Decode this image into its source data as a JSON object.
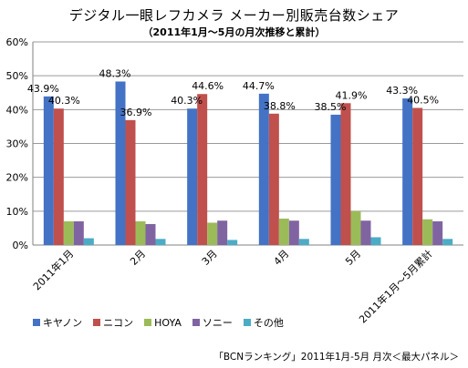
{
  "chart_data": {
    "type": "bar",
    "title": "デジタル一眼レフカメラ メーカー別販売台数シェア",
    "subtitle": "（2011年1月～5月の月次推移と累計）",
    "categories": [
      "2011年1月",
      "2月",
      "3月",
      "4月",
      "5月",
      "2011年1月～5月累計"
    ],
    "series": [
      {
        "name": "キヤノン",
        "color": "#4472C4",
        "values": [
          43.9,
          48.3,
          40.3,
          44.7,
          38.5,
          43.3
        ]
      },
      {
        "name": "ニコン",
        "color": "#C0504D",
        "values": [
          40.3,
          36.9,
          44.6,
          38.8,
          41.9,
          40.5
        ]
      },
      {
        "name": "HOYA",
        "color": "#9BBB59",
        "values": [
          7.0,
          7.0,
          6.6,
          7.8,
          10.0,
          7.6
        ]
      },
      {
        "name": "ソニー",
        "color": "#8064A2",
        "values": [
          7.0,
          6.2,
          7.2,
          7.2,
          7.2,
          7.0
        ]
      },
      {
        "name": "その他",
        "color": "#4BACC6",
        "values": [
          2.0,
          1.8,
          1.5,
          1.8,
          2.3,
          1.8
        ]
      }
    ],
    "data_labels": [
      [
        "43.9%",
        "40.3%"
      ],
      [
        "48.3%",
        "36.9%"
      ],
      [
        "40.3%",
        "44.6%"
      ],
      [
        "44.7%",
        "38.8%"
      ],
      [
        "38.5%",
        "41.9%"
      ],
      [
        "43.3%",
        "40.5%"
      ]
    ],
    "ylim": [
      0,
      60
    ],
    "yticks": [
      "0%",
      "10%",
      "20%",
      "30%",
      "40%",
      "50%",
      "60%"
    ],
    "grid": true,
    "legend": "bottom-left"
  },
  "source": "「BCNランキング」2011年1月-5月  月次＜最大パネル＞"
}
